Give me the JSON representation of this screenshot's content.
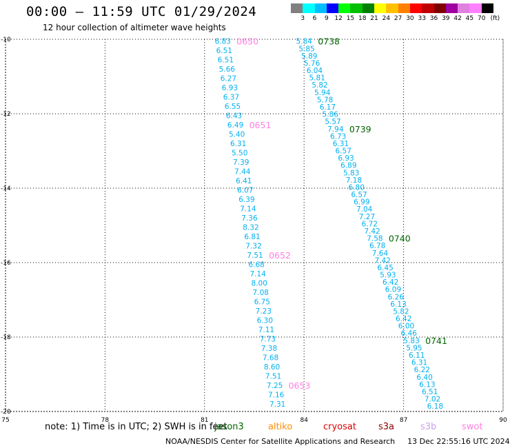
{
  "header": {
    "title": "00:00 – 11:59 UTC 01/29/2024",
    "subtitle": "12 hour collection of altimeter wave heights"
  },
  "legend": {
    "labels": [
      "3",
      "6",
      "9",
      "12",
      "15",
      "18",
      "21",
      "24",
      "27",
      "30",
      "33",
      "36",
      "39",
      "42",
      "45",
      "70"
    ],
    "unit": "(ft)",
    "colors": [
      "#808080",
      "#00ffff",
      "#00bfff",
      "#0000ff",
      "#00ff00",
      "#00c000",
      "#008000",
      "#ffff00",
      "#ffc000",
      "#ff8000",
      "#ff0000",
      "#c00000",
      "#800000",
      "#a000a0",
      "#e080e0",
      "#ff80ff",
      "#000000"
    ]
  },
  "note": {
    "text": "note:  1) Time is in UTC; 2) SWH is in feet"
  },
  "missions": {
    "jason3": "jason3",
    "altika": "altiko",
    "cryosat": "cryosat",
    "s3a": "s3a",
    "s3b": "s3b",
    "swot": "swot"
  },
  "mission_colors": {
    "jason3": "#006400",
    "altika": "#ff8c00",
    "cryosat": "#dd0000",
    "s3a": "#8b0000",
    "s3b": "#c8a0f0",
    "swot": "#ff80e0"
  },
  "footer": {
    "credit": "NOAA/NESDIS Center for Satellite Applications and Research",
    "timestamp": "13 Dec 22:55:16 UTC 2024"
  },
  "chart_data": {
    "type": "scatter",
    "x_axis": {
      "ticks": [
        "75",
        "78",
        "81",
        "84",
        "87",
        "90"
      ],
      "range": [
        75,
        90
      ]
    },
    "y_axis": {
      "ticks": [
        "-10",
        "-12",
        "-14",
        "-16",
        "-18",
        "-20"
      ],
      "range": [
        -20,
        -10
      ]
    },
    "grid": true,
    "value_color": "#00b0f0",
    "tracks": [
      {
        "mission": "swot",
        "lon_start": 81.55,
        "lon_end": 83.2,
        "values": [
          "6.83",
          "6.51",
          "6.51",
          "5.66",
          "6.27",
          "6.93",
          "6.37",
          "6.55",
          "6.43",
          "6.49",
          "5.40",
          "6.31",
          "5.50",
          "7.39",
          "7.44",
          "6.41",
          "6.07",
          "6.39",
          "7.14",
          "7.36",
          "8.32",
          "6.81",
          "7.32",
          "7.51",
          "6.68",
          "7.14",
          "8.00",
          "7.08",
          "6.75",
          "7.23",
          "6.30",
          "7.11",
          "7.73",
          "7.38",
          "7.68",
          "8.60",
          "7.51",
          "7.25",
          "7.16",
          "7.31"
        ],
        "times": [
          {
            "label": "0650",
            "index": 0
          },
          {
            "label": "0651",
            "index": 9
          },
          {
            "label": "0652",
            "index": 23
          },
          {
            "label": "0653",
            "index": 37
          }
        ]
      },
      {
        "mission": "jason3",
        "lon_start": 84.0,
        "lon_end": 87.95,
        "values": [
          "5.84",
          "5.85",
          "5.89",
          "5.76",
          "6.04",
          "5.81",
          "5.82",
          "5.94",
          "5.78",
          "6.17",
          "5.86",
          "5.57",
          "7.94",
          "6.73",
          "6.31",
          "6.57",
          "6.93",
          "6.89",
          "5.83",
          "7.18",
          "6.80",
          "6.57",
          "6.99",
          "7.04",
          "7.27",
          "6.72",
          "7.42",
          "7.58",
          "6.78",
          "7.64",
          "7.42",
          "6.45",
          "5.93",
          "6.42",
          "6.09",
          "6.26",
          "6.13",
          "5.82",
          "6.42",
          "6.00",
          "6.46",
          "5.83",
          "5.95",
          "6.11",
          "6.31",
          "6.22",
          "6.40",
          "6.13",
          "6.51",
          "7.02",
          "6.18"
        ],
        "times": [
          {
            "label": "0738",
            "index": 0
          },
          {
            "label": "0739",
            "index": 12
          },
          {
            "label": "0740",
            "index": 27
          },
          {
            "label": "0741",
            "index": 41
          }
        ]
      }
    ]
  }
}
